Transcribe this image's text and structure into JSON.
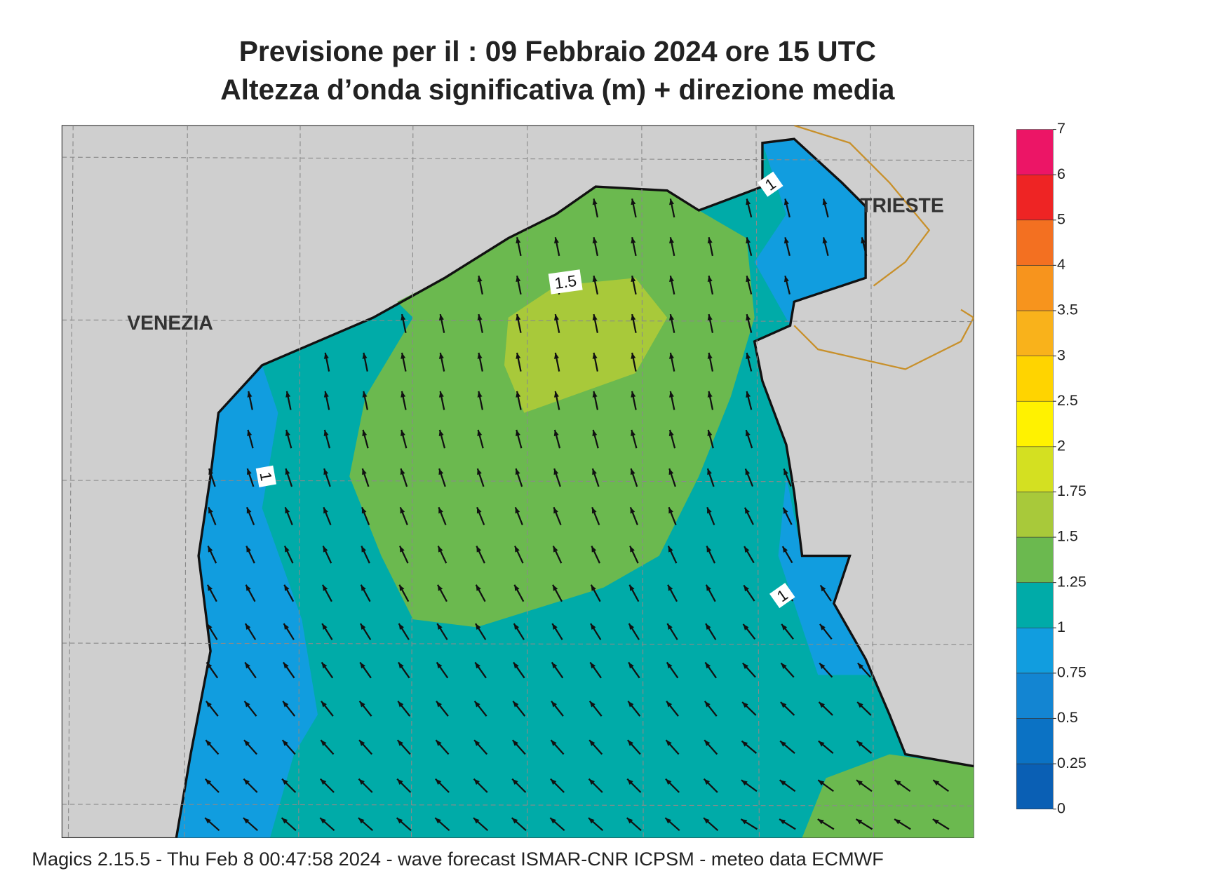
{
  "header": {
    "title_line1": "Previsione per il  :  09  Febbraio 2024   ore 15 UTC",
    "title_line2": "Altezza d’onda significativa (m) + direzione media"
  },
  "map": {
    "place_labels": [
      "VENEZIA",
      "TRIESTE"
    ],
    "contour_labels": [
      "1.5",
      "1",
      "1",
      "1"
    ]
  },
  "legend": {
    "levels": [
      0,
      0.25,
      0.5,
      0.75,
      1,
      1.25,
      1.5,
      1.75,
      2,
      2.5,
      3,
      3.5,
      4,
      5,
      6,
      7
    ],
    "colors": [
      "#0a5fb4",
      "#0b72c4",
      "#1385d2",
      "#119ddf",
      "#00aba8",
      "#6bb94f",
      "#a8c93a",
      "#d4e021",
      "#fff200",
      "#ffd400",
      "#f9b21b",
      "#f7941d",
      "#f37021",
      "#ee2424",
      "#ec1566"
    ]
  },
  "footer": "Magics 2.15.5 - Thu Feb  8 00:47:58 2024 - wave forecast  ISMAR-CNR  ICPSM - meteo data   ECMWF"
}
